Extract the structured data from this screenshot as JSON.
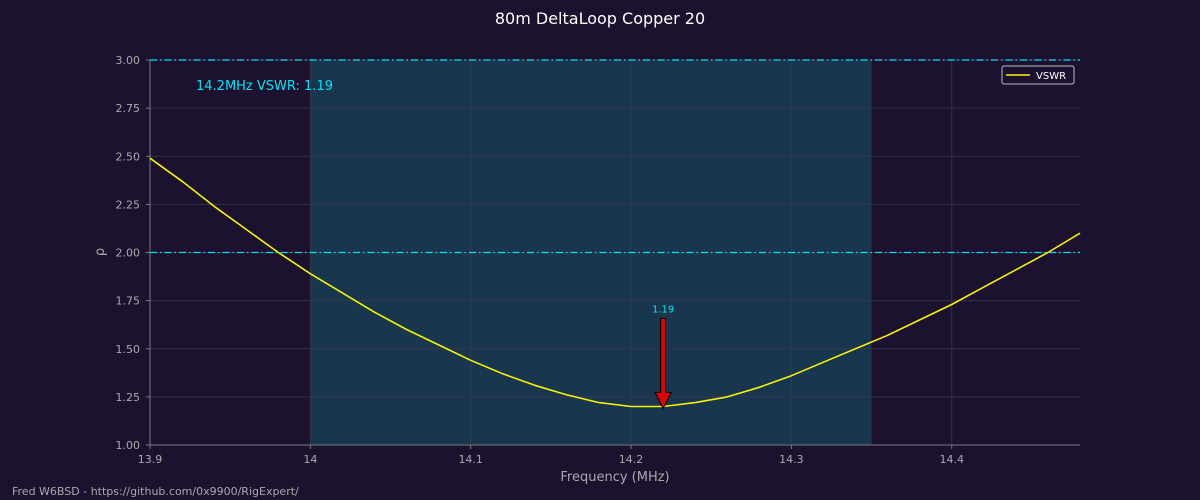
{
  "footer": "Fred W6BSD - https://github.com/0x9900/RigExpert/",
  "chart_data": {
    "type": "line",
    "title": "80m DeltaLoop Copper 20",
    "xlabel": "Frequency (MHz)",
    "ylabel": "ρ",
    "xlim": [
      13.9,
      14.48
    ],
    "ylim": [
      1.0,
      3.0
    ],
    "xticks": [
      "13.9",
      "14",
      "14.1",
      "14.2",
      "14.3",
      "14.4"
    ],
    "yticks": [
      "1.00",
      "1.25",
      "1.50",
      "1.75",
      "2.00",
      "2.25",
      "2.50",
      "2.75",
      "3.00"
    ],
    "grid": true,
    "legend": "top-right",
    "band": {
      "from": 14.0,
      "to": 14.35
    },
    "ref_lines": [
      2.0,
      3.0
    ],
    "annotation_text": "14.2MHz VSWR: 1.19",
    "marker": {
      "x": 14.22,
      "y": 1.19,
      "label": "1.19"
    },
    "series": [
      {
        "name": "VSWR",
        "color": "#f5f500",
        "x": [
          13.9,
          13.92,
          13.94,
          13.96,
          13.98,
          14.0,
          14.02,
          14.04,
          14.06,
          14.08,
          14.1,
          14.12,
          14.14,
          14.16,
          14.18,
          14.2,
          14.22,
          14.24,
          14.26,
          14.28,
          14.3,
          14.32,
          14.34,
          14.36,
          14.38,
          14.4,
          14.42,
          14.44,
          14.46,
          14.48
        ],
        "y": [
          2.49,
          2.37,
          2.24,
          2.12,
          2.0,
          1.89,
          1.79,
          1.69,
          1.6,
          1.52,
          1.44,
          1.37,
          1.31,
          1.26,
          1.22,
          1.2,
          1.2,
          1.22,
          1.25,
          1.3,
          1.36,
          1.43,
          1.5,
          1.57,
          1.65,
          1.73,
          1.82,
          1.91,
          2.0,
          2.1
        ]
      }
    ],
    "colors": {
      "background": "#1c1230",
      "band": "#19364f",
      "grid": "#3a3a4a",
      "axis": "#7a7a7a",
      "tick_text": "#a9a9a9",
      "ref_line": "#00e5f5",
      "annotation": "#00e5f5",
      "marker_fill": "#e00000",
      "title": "#ffffff"
    }
  }
}
